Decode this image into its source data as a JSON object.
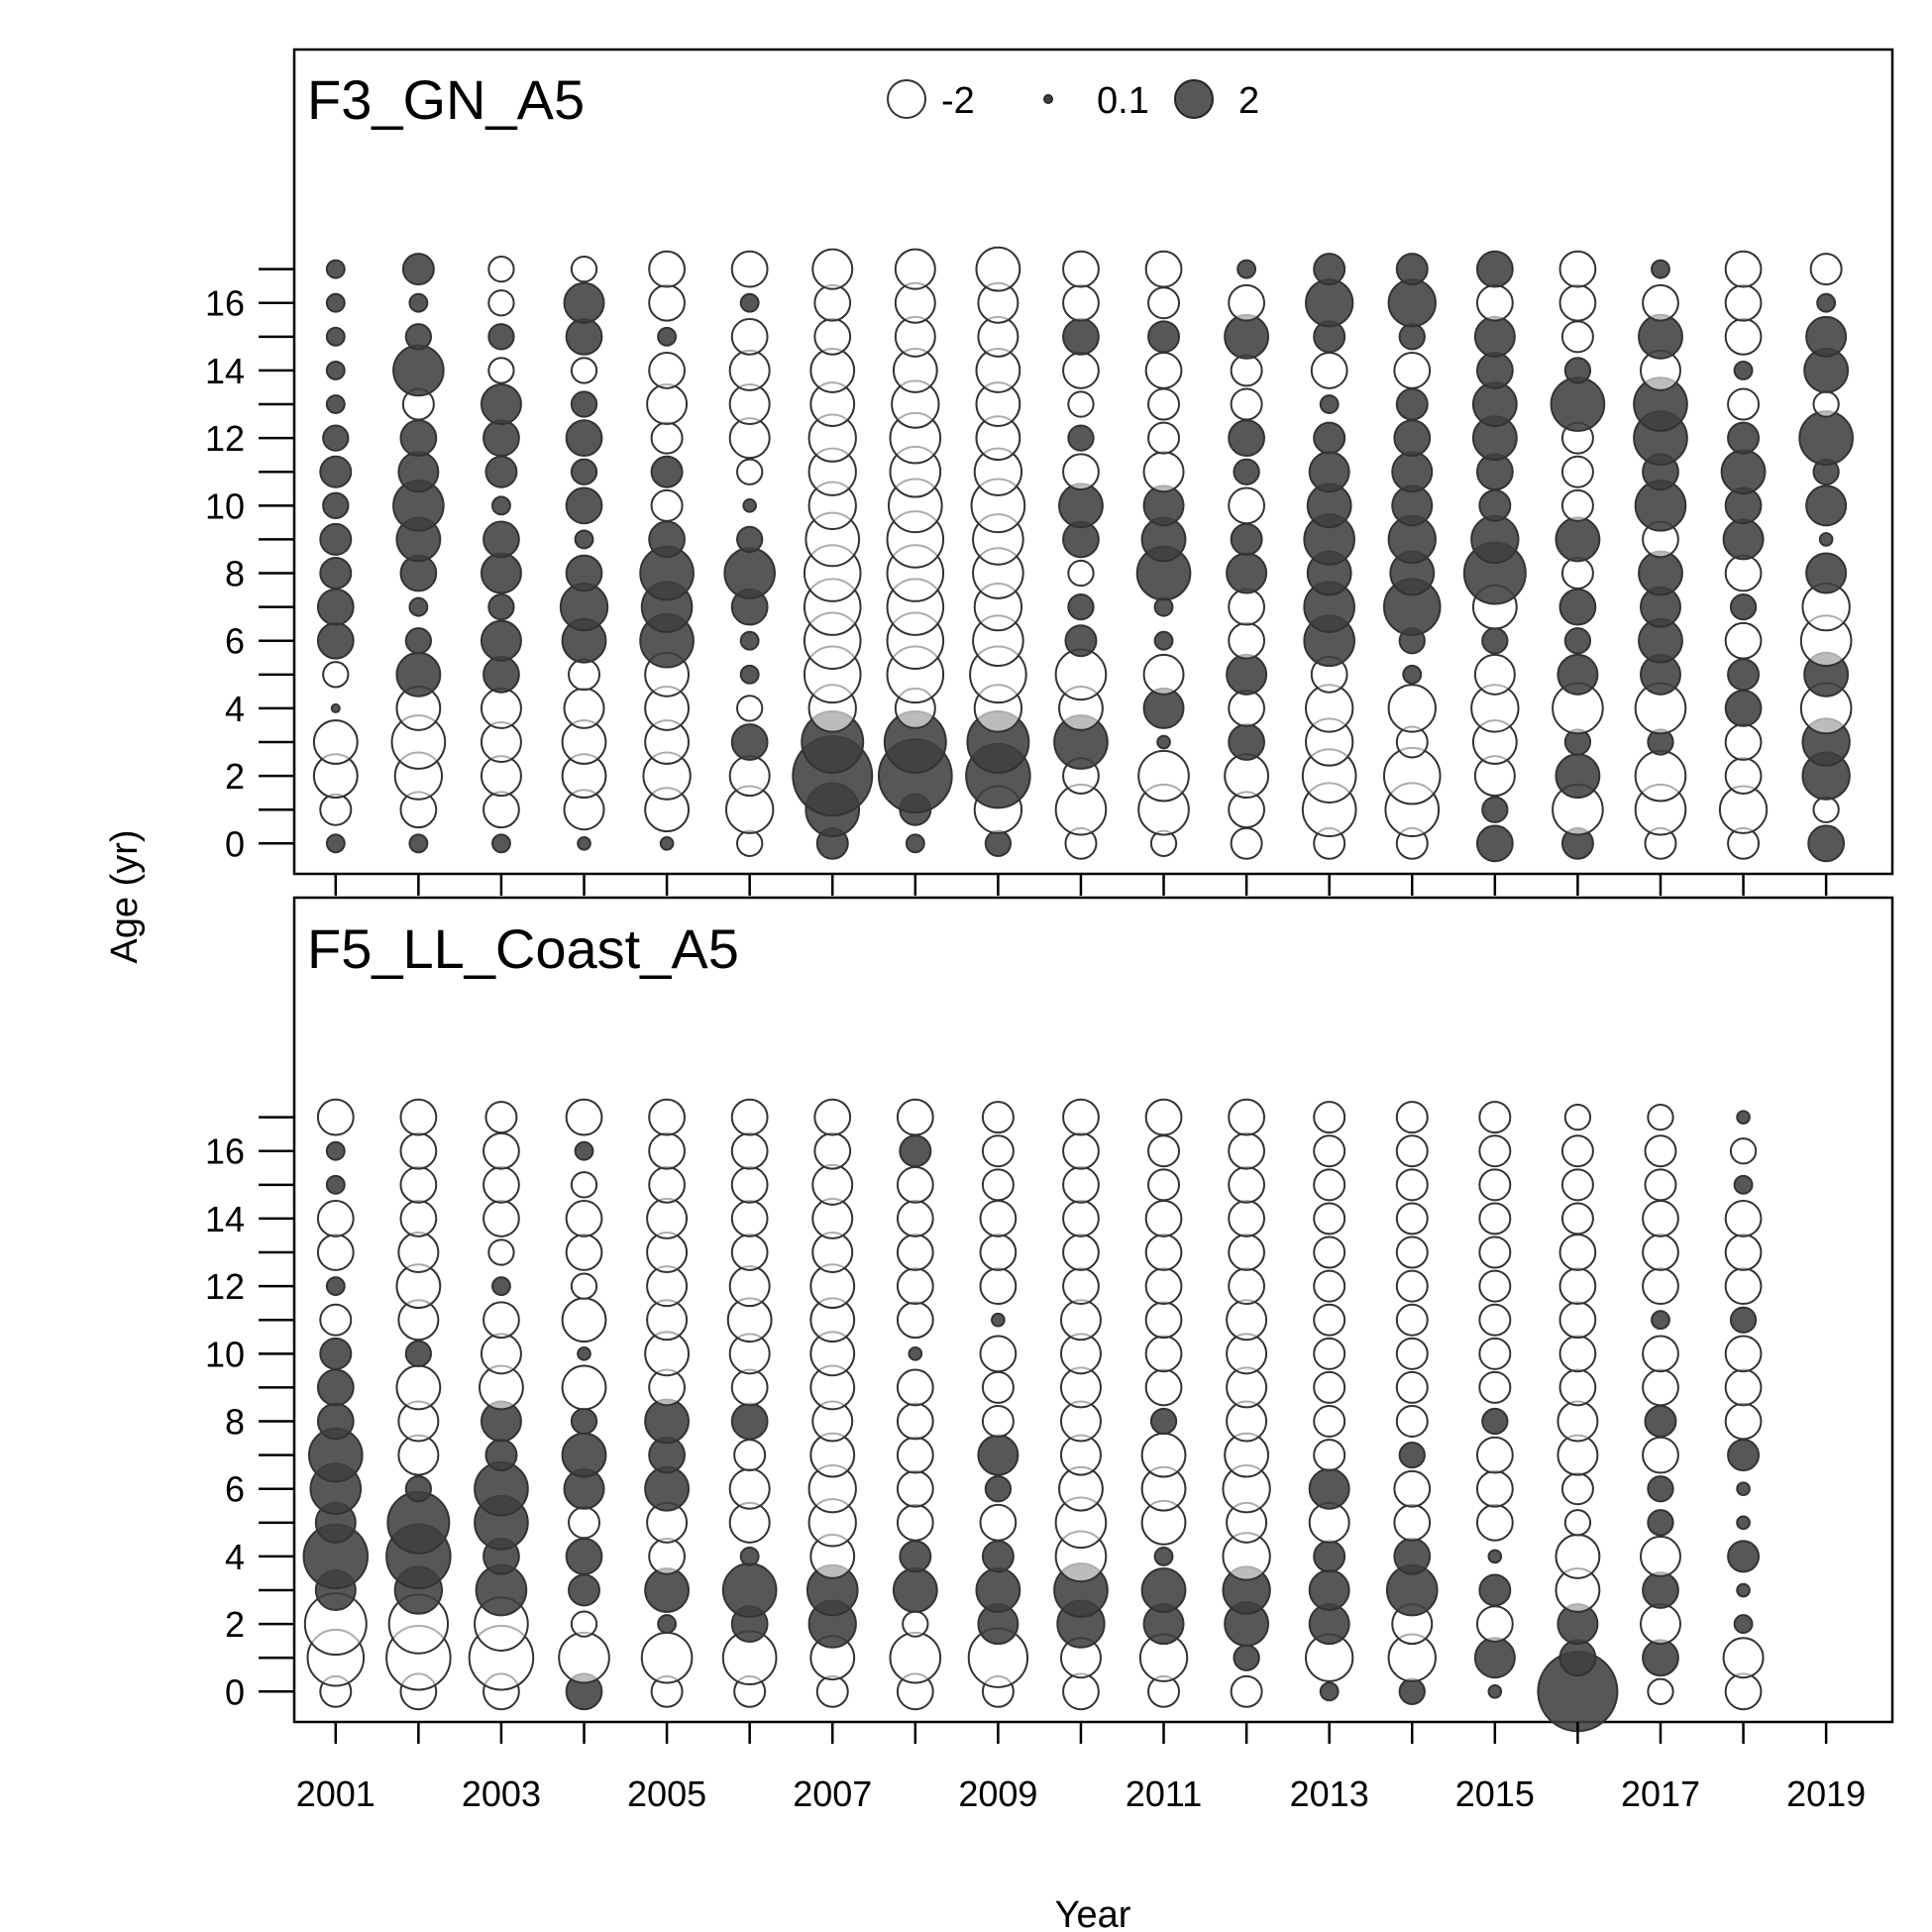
{
  "figure": {
    "xlabel": "Year",
    "ylabel": "Age (yr)"
  },
  "legend": {
    "items": [
      {
        "label": "-2",
        "value": -2,
        "fill": "none"
      },
      {
        "label": "0.1",
        "value": 0.1,
        "fill": "dark"
      },
      {
        "label": "2",
        "value": 2,
        "fill": "dark"
      }
    ]
  },
  "colors": {
    "positive_fill": "#404040",
    "negative_fill": "#ffffff",
    "stroke": "#333333"
  },
  "chart_data": [
    {
      "type": "scatter",
      "subtype": "bubble residual plot",
      "title": "F3_GN_A5",
      "x_ticks": [
        2001,
        2003,
        2005,
        2007,
        2009,
        2011,
        2013,
        2015,
        2017,
        2019
      ],
      "xlim": [
        2000.5,
        2019.8
      ],
      "y_ticks": [
        0,
        2,
        4,
        6,
        8,
        10,
        12,
        14,
        16
      ],
      "ylim": [
        -0.9,
        23.5
      ],
      "years": [
        2001,
        2002,
        2003,
        2004,
        2005,
        2006,
        2007,
        2008,
        2009,
        2010,
        2011,
        2012,
        2013,
        2014,
        2015,
        2016,
        2017,
        2018,
        2019
      ],
      "ages": [
        0,
        1,
        2,
        3,
        4,
        5,
        6,
        7,
        8,
        9,
        10,
        11,
        12,
        13,
        14,
        15,
        16,
        17
      ],
      "residuals": [
        [
          0.1,
          -0.3,
          -0.6,
          -0.6,
          0.02,
          -0.2,
          0.4,
          0.4,
          0.3,
          0.3,
          0.2,
          0.3,
          0.2,
          0.1,
          0.1,
          0.1,
          0.1,
          0.1
        ],
        [
          0.1,
          -0.4,
          -0.7,
          -0.9,
          -0.6,
          0.6,
          0.2,
          0.1,
          0.4,
          0.6,
          0.8,
          0.5,
          0.4,
          -0.3,
          0.8,
          0.2,
          0.1,
          0.3
        ],
        [
          0.1,
          -0.4,
          -0.5,
          -0.5,
          -0.5,
          0.4,
          0.5,
          0.2,
          0.5,
          0.4,
          0.1,
          0.3,
          0.4,
          0.5,
          -0.2,
          0.2,
          -0.2,
          -0.2
        ],
        [
          0.05,
          -0.5,
          -0.6,
          -0.6,
          -0.5,
          -0.3,
          0.6,
          0.7,
          0.4,
          0.1,
          0.4,
          0.2,
          0.4,
          0.2,
          -0.2,
          0.4,
          0.5,
          -0.2
        ],
        [
          0.05,
          -0.6,
          -0.7,
          -0.6,
          -0.6,
          -0.6,
          0.9,
          0.8,
          0.9,
          0.4,
          -0.3,
          0.3,
          -0.3,
          -0.5,
          -0.4,
          0.1,
          -0.4,
          -0.4
        ],
        [
          -0.2,
          -0.7,
          -0.5,
          0.4,
          -0.2,
          0.1,
          0.1,
          0.4,
          0.8,
          0.2,
          0.05,
          -0.2,
          -0.5,
          -0.5,
          -0.5,
          -0.4,
          0.1,
          -0.4
        ],
        [
          0.3,
          0.9,
          2.0,
          1.2,
          -0.7,
          -1.0,
          -1.0,
          -1.0,
          -1.0,
          -0.9,
          -0.7,
          -0.7,
          -0.7,
          -0.6,
          -0.6,
          -0.4,
          -0.4,
          -0.5
        ],
        [
          0.1,
          0.3,
          1.7,
          1.2,
          -0.5,
          -1.0,
          -1.0,
          -1.0,
          -1.0,
          -1.0,
          -0.9,
          -0.8,
          -0.8,
          -0.7,
          -0.6,
          -0.5,
          -0.5,
          -0.5
        ],
        [
          0.2,
          -0.7,
          1.3,
          1.2,
          -0.7,
          -1.0,
          -0.8,
          -0.7,
          -0.8,
          -0.8,
          -0.9,
          -0.7,
          -0.6,
          -0.6,
          -0.6,
          -0.5,
          -0.5,
          -0.6
        ],
        [
          -0.3,
          -0.8,
          -0.4,
          0.9,
          -0.6,
          -0.8,
          0.3,
          0.2,
          -0.2,
          0.4,
          0.6,
          -0.4,
          0.2,
          -0.2,
          -0.4,
          0.4,
          -0.4,
          -0.4
        ],
        [
          -0.2,
          -0.8,
          -0.8,
          0.05,
          0.5,
          -0.5,
          0.1,
          0.1,
          0.9,
          0.6,
          0.5,
          -0.5,
          -0.3,
          -0.3,
          -0.4,
          0.3,
          -0.3,
          -0.4
        ],
        [
          -0.3,
          -0.4,
          -0.6,
          0.4,
          -0.4,
          0.5,
          -0.4,
          -0.4,
          0.5,
          0.3,
          -0.4,
          0.2,
          0.4,
          -0.3,
          -0.3,
          0.6,
          -0.4,
          0.1
        ],
        [
          -0.3,
          -0.9,
          -0.9,
          -0.7,
          -0.7,
          -0.4,
          0.8,
          0.8,
          0.6,
          0.8,
          0.6,
          0.5,
          0.3,
          0.1,
          -0.4,
          0.3,
          0.7,
          0.3
        ],
        [
          -0.3,
          -0.9,
          -1.0,
          -0.3,
          -0.7,
          0.1,
          0.2,
          1.0,
          0.6,
          0.7,
          0.5,
          0.5,
          0.4,
          0.3,
          -0.4,
          0.2,
          0.7,
          0.3
        ],
        [
          0.4,
          0.2,
          -0.5,
          -0.6,
          -0.7,
          -0.5,
          0.2,
          -0.6,
          1.2,
          0.7,
          0.3,
          0.4,
          0.6,
          0.6,
          0.4,
          0.5,
          -0.4,
          0.4
        ],
        [
          0.3,
          -0.8,
          0.6,
          0.2,
          -0.8,
          0.5,
          0.2,
          0.4,
          -0.3,
          0.6,
          -0.3,
          -0.3,
          -0.3,
          0.9,
          0.2,
          -0.3,
          -0.4,
          -0.4
        ],
        [
          -0.3,
          -0.8,
          -0.8,
          0.2,
          -0.8,
          0.5,
          0.6,
          0.5,
          0.6,
          -0.4,
          0.8,
          0.4,
          0.9,
          0.9,
          -0.5,
          0.6,
          -0.4,
          0.1
        ],
        [
          -0.3,
          -0.7,
          -0.4,
          -0.4,
          0.4,
          0.3,
          -0.4,
          0.2,
          -0.4,
          0.5,
          0.4,
          0.6,
          0.3,
          -0.3,
          0.1,
          -0.4,
          -0.4,
          -0.4
        ],
        [
          0.4,
          -0.2,
          0.7,
          0.7,
          -0.8,
          0.6,
          -0.8,
          -0.7,
          0.5,
          0.05,
          0.5,
          0.2,
          0.9,
          -0.2,
          0.6,
          0.5,
          0.1,
          -0.3
        ]
      ]
    },
    {
      "type": "scatter",
      "subtype": "bubble residual plot",
      "title": "F5_LL_Coast_A5",
      "x_ticks": [
        2001,
        2003,
        2005,
        2007,
        2009,
        2011,
        2013,
        2015,
        2017,
        2019
      ],
      "xlim": [
        2000.5,
        2019.8
      ],
      "y_ticks": [
        0,
        2,
        4,
        6,
        8,
        10,
        12,
        14,
        16
      ],
      "ylim": [
        -0.9,
        23.5
      ],
      "years": [
        2001,
        2002,
        2003,
        2004,
        2005,
        2006,
        2007,
        2008,
        2009,
        2010,
        2011,
        2012,
        2013,
        2014,
        2015,
        2016,
        2017,
        2018
      ],
      "ages": [
        0,
        1,
        2,
        3,
        4,
        5,
        6,
        7,
        8,
        9,
        10,
        11,
        12,
        13,
        14,
        15,
        16,
        17
      ],
      "residuals": [
        [
          -0.3,
          -1.0,
          -1.2,
          0.5,
          1.3,
          0.5,
          0.8,
          0.9,
          0.4,
          0.4,
          0.3,
          -0.3,
          0.1,
          -0.4,
          -0.4,
          0.1,
          0.1,
          -0.4
        ],
        [
          -0.4,
          -1.3,
          -1.1,
          0.7,
          1.3,
          1.2,
          0.2,
          -0.5,
          -0.5,
          -0.6,
          0.2,
          -0.5,
          -0.6,
          -0.5,
          -0.4,
          -0.4,
          -0.4,
          -0.4
        ],
        [
          -0.4,
          -1.3,
          -0.9,
          0.8,
          0.4,
          0.9,
          0.9,
          0.3,
          0.5,
          -0.6,
          -0.5,
          -0.4,
          0.1,
          -0.2,
          -0.4,
          -0.4,
          -0.4,
          -0.3
        ],
        [
          0.4,
          -0.8,
          -0.2,
          0.3,
          0.4,
          -0.3,
          0.5,
          0.6,
          0.2,
          -0.6,
          0.05,
          -0.6,
          -0.2,
          -0.4,
          -0.4,
          -0.2,
          0.1,
          -0.4
        ],
        [
          -0.3,
          -0.8,
          0.1,
          0.6,
          -0.4,
          -0.5,
          0.6,
          0.4,
          0.6,
          -0.4,
          -0.6,
          -0.5,
          -0.5,
          -0.5,
          -0.5,
          -0.4,
          -0.4,
          -0.4
        ],
        [
          -0.3,
          -0.9,
          0.4,
          0.9,
          0.1,
          -0.5,
          -0.5,
          -0.3,
          0.4,
          -0.4,
          -0.5,
          -0.6,
          -0.5,
          -0.4,
          -0.4,
          -0.4,
          -0.4,
          -0.4
        ],
        [
          -0.3,
          -0.6,
          0.7,
          0.8,
          -0.6,
          -0.7,
          -0.7,
          -0.6,
          -0.5,
          -0.6,
          -0.6,
          -0.6,
          -0.6,
          -0.5,
          -0.5,
          -0.5,
          -0.4,
          -0.4
        ],
        [
          -0.4,
          -0.8,
          -0.2,
          0.6,
          0.3,
          -0.4,
          -0.4,
          -0.4,
          -0.4,
          -0.4,
          0.05,
          -0.4,
          -0.4,
          -0.4,
          -0.4,
          -0.4,
          0.3,
          -0.4
        ],
        [
          -0.3,
          -1.1,
          0.5,
          0.6,
          0.3,
          -0.4,
          0.2,
          0.5,
          -0.3,
          -0.3,
          -0.4,
          0.05,
          -0.4,
          -0.4,
          -0.4,
          -0.3,
          -0.3,
          -0.3
        ],
        [
          -0.4,
          -0.5,
          0.7,
          0.9,
          -0.8,
          -0.8,
          -0.6,
          -0.5,
          -0.5,
          -0.5,
          -0.5,
          -0.5,
          -0.4,
          -0.4,
          -0.4,
          -0.4,
          -0.4,
          -0.4
        ],
        [
          -0.3,
          -0.7,
          0.5,
          0.6,
          0.1,
          -0.6,
          -0.6,
          -0.6,
          0.2,
          -0.4,
          -0.4,
          -0.4,
          -0.4,
          -0.4,
          -0.4,
          -0.3,
          -0.3,
          -0.4
        ],
        [
          -0.3,
          0.2,
          0.6,
          0.7,
          -0.7,
          -0.5,
          -0.7,
          -0.6,
          -0.5,
          -0.5,
          -0.5,
          -0.5,
          -0.4,
          -0.4,
          -0.4,
          -0.4,
          -0.4,
          -0.4
        ],
        [
          0.1,
          -0.7,
          0.5,
          0.5,
          0.3,
          -0.5,
          0.5,
          -0.3,
          -0.3,
          -0.3,
          -0.3,
          -0.3,
          -0.3,
          -0.3,
          -0.3,
          -0.3,
          -0.3,
          -0.3
        ],
        [
          0.2,
          -0.7,
          -0.5,
          0.8,
          0.4,
          -0.4,
          -0.4,
          0.2,
          -0.3,
          -0.3,
          -0.3,
          -0.3,
          -0.3,
          -0.3,
          -0.3,
          -0.3,
          -0.3,
          -0.3
        ],
        [
          0.05,
          0.5,
          -0.4,
          0.3,
          0.05,
          -0.4,
          -0.4,
          -0.4,
          0.2,
          -0.3,
          -0.3,
          -0.3,
          -0.3,
          -0.3,
          -0.3,
          -0.3,
          -0.3,
          -0.3
        ],
        [
          2.0,
          0.4,
          0.5,
          -0.6,
          -0.6,
          -0.2,
          -0.3,
          -0.5,
          -0.5,
          -0.4,
          -0.4,
          -0.4,
          -0.4,
          -0.4,
          -0.3,
          -0.3,
          -0.3,
          -0.2
        ],
        [
          -0.2,
          0.4,
          -0.5,
          0.4,
          -0.5,
          0.2,
          0.2,
          -0.4,
          0.3,
          -0.4,
          -0.4,
          0.1,
          -0.4,
          -0.4,
          -0.4,
          -0.3,
          -0.3,
          -0.2
        ],
        [
          -0.4,
          -0.5,
          0.1,
          0.05,
          0.3,
          0.05,
          0.05,
          0.3,
          -0.4,
          -0.4,
          -0.4,
          0.2,
          -0.4,
          -0.4,
          -0.4,
          0.1,
          -0.2,
          0.05
        ]
      ]
    }
  ]
}
